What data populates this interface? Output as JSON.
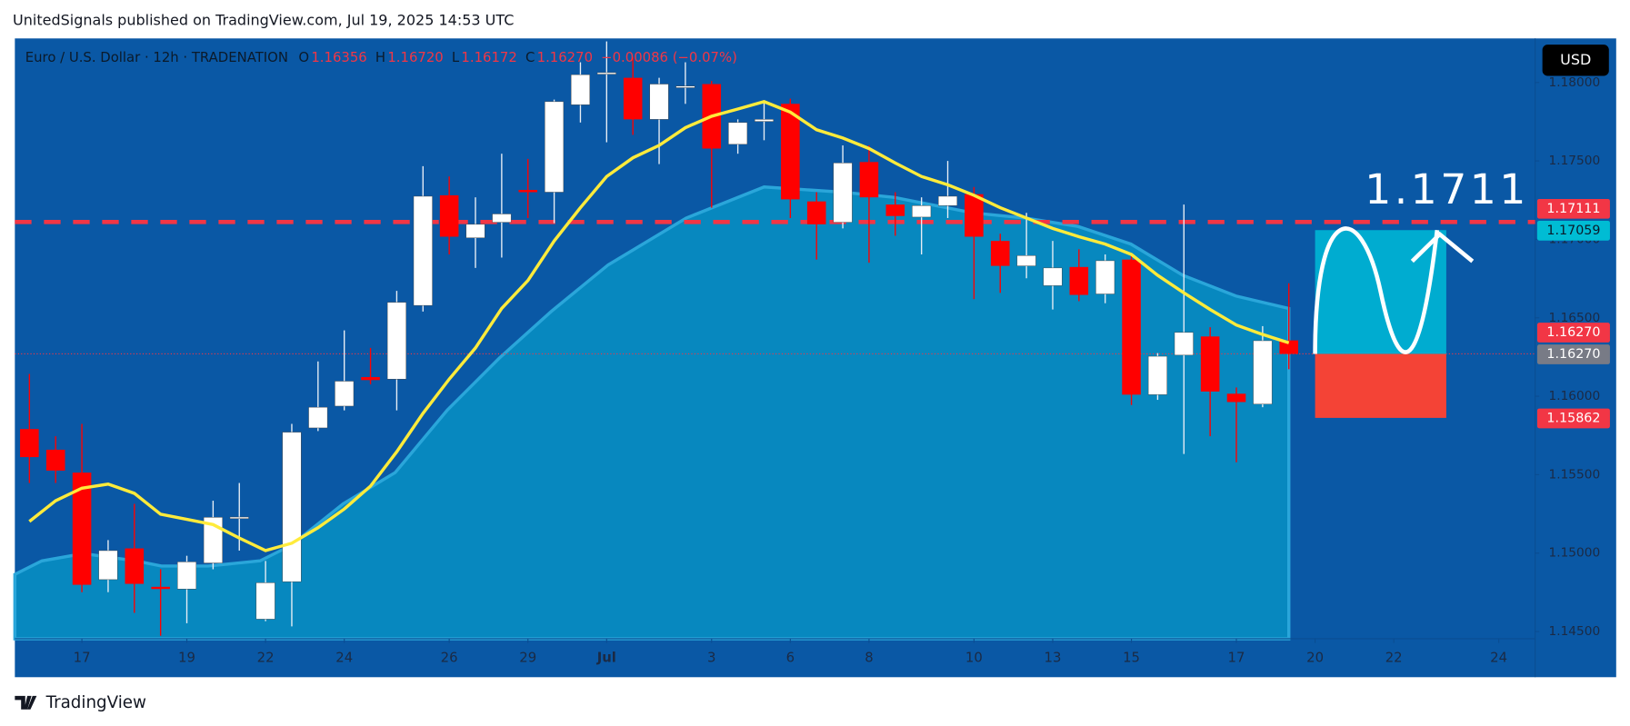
{
  "header": "UnitedSignals published on TradingView.com, Jul 19, 2025 14:53 UTC",
  "footer": "TradingView",
  "chart_data": {
    "type": "candlestick",
    "title": "Euro / U.S. Dollar · 12h · TRADENATION",
    "ohlc_legend": [
      {
        "label": "O",
        "value": "1.16356"
      },
      {
        "label": "H",
        "value": "1.16720"
      },
      {
        "label": "L",
        "value": "1.16172"
      },
      {
        "label": "C",
        "value": "1.16270"
      }
    ],
    "change": "−0.00086 (−0.07%)",
    "currency": "USD",
    "annotation": "1.1711",
    "categories": [
      null,
      null,
      "17",
      null,
      null,
      null,
      "19",
      null,
      null,
      "22",
      null,
      null,
      "24",
      null,
      null,
      null,
      "26",
      null,
      null,
      "29",
      null,
      null,
      "Jul",
      null,
      null,
      null,
      "3",
      null,
      null,
      "6",
      null,
      null,
      "8",
      null,
      null,
      null,
      "10",
      null,
      null,
      "13",
      null,
      null,
      "15",
      null,
      null,
      null,
      "17",
      null,
      null,
      "20",
      null,
      null,
      "22",
      null,
      null,
      null,
      "24",
      null
    ],
    "open": [
      1.15791,
      1.15659,
      1.15513,
      1.14831,
      1.1503,
      1.14785,
      1.14771,
      1.14937,
      1.15228,
      1.14579,
      1.14818,
      1.15798,
      1.15937,
      1.16122,
      1.16109,
      1.16579,
      1.17281,
      1.1701,
      1.17109,
      1.17315,
      1.17301,
      1.17858,
      1.18063,
      1.1803,
      1.17765,
      1.17977,
      1.1799,
      1.17606,
      1.17752,
      1.17864,
      1.17242,
      1.17109,
      1.17493,
      1.17222,
      1.17142,
      1.17215,
      1.17288,
      1.1699,
      1.16831,
      1.16705,
      1.16824,
      1.16652,
      1.16871,
      1.1601,
      1.16262,
      1.16381,
      1.16016,
      1.1595,
      1.16356,
      null,
      null,
      null,
      null,
      null,
      null,
      null,
      null,
      null
    ],
    "high": [
      1.16142,
      1.15745,
      1.15824,
      1.15083,
      1.15314,
      1.14897,
      1.14983,
      1.15334,
      1.15447,
      1.1495,
      1.15824,
      1.16222,
      1.1642,
      1.16308,
      1.16672,
      1.17467,
      1.17401,
      1.17268,
      1.17546,
      1.17513,
      1.17891,
      1.18129,
      1.18262,
      1.18162,
      1.1803,
      1.18129,
      1.1801,
      1.17765,
      1.17878,
      1.17897,
      1.17301,
      1.17599,
      1.17599,
      1.17301,
      1.17268,
      1.175,
      1.17334,
      1.17036,
      1.17169,
      1.1699,
      1.16937,
      1.16904,
      1.16904,
      1.16275,
      1.17222,
      1.1644,
      1.16056,
      1.16447,
      1.1672,
      null,
      null,
      null,
      null,
      null,
      null,
      null,
      null,
      null
    ],
    "low": [
      1.15447,
      1.15447,
      1.14751,
      1.14751,
      1.14619,
      1.14473,
      1.14553,
      1.14897,
      1.15016,
      1.14566,
      1.14533,
      1.15778,
      1.1591,
      1.16076,
      1.1591,
      1.1654,
      1.16904,
      1.16818,
      1.16884,
      1.17136,
      1.17103,
      1.17745,
      1.17619,
      1.17666,
      1.1748,
      1.17864,
      1.17202,
      1.17546,
      1.17632,
      1.17136,
      1.16871,
      1.1707,
      1.16851,
      1.17023,
      1.16904,
      1.17136,
      1.16619,
      1.16659,
      1.16752,
      1.16553,
      1.16606,
      1.16593,
      1.15944,
      1.15977,
      1.15632,
      1.15745,
      1.15579,
      1.1593,
      1.16172,
      null,
      null,
      null,
      null,
      null,
      null,
      null,
      null,
      null
    ],
    "close": [
      1.15612,
      1.15526,
      1.14798,
      1.15016,
      1.14804,
      1.14771,
      1.14944,
      1.15228,
      1.1523,
      1.14811,
      1.15771,
      1.1593,
      1.16096,
      1.16103,
      1.16599,
      1.17275,
      1.17017,
      1.17096,
      1.17162,
      1.17301,
      1.17878,
      1.1805,
      1.18063,
      1.17765,
      1.1799,
      1.17977,
      1.17579,
      1.17745,
      1.17765,
      1.17255,
      1.17096,
      1.17487,
      1.17268,
      1.17149,
      1.17215,
      1.17275,
      1.17017,
      1.16831,
      1.16897,
      1.16818,
      1.16646,
      1.16864,
      1.1601,
      1.16255,
      1.16407,
      1.1603,
      1.15963,
      1.16354,
      1.1627,
      null,
      null,
      null,
      null,
      null,
      null,
      null,
      null,
      null
    ],
    "up_color": "#ffffff",
    "down_color": "#ff0000",
    "ma": {
      "color": "#ffeb3b",
      "values": [
        1.15202,
        1.15334,
        1.15414,
        1.1544,
        1.15381,
        1.15248,
        1.15215,
        1.15182,
        1.15096,
        1.15016,
        1.15063,
        1.15162,
        1.15281,
        1.15427,
        1.15646,
        1.15891,
        1.16109,
        1.16308,
        1.1656,
        1.16738,
        1.1699,
        1.17202,
        1.17401,
        1.1752,
        1.17599,
        1.17712,
        1.17785,
        1.17831,
        1.17878,
        1.17811,
        1.17699,
        1.17646,
        1.17579,
        1.17487,
        1.17401,
        1.17348,
        1.17281,
        1.17202,
        1.17136,
        1.1707,
        1.17017,
        1.1697,
        1.16904,
        1.16771,
        1.16659,
        1.16553,
        1.16454,
        1.16394,
        1.16341,
        null,
        null,
        null,
        null,
        null,
        null,
        null,
        null,
        null
      ]
    },
    "ylim": [
      1.14454,
      1.18281
    ],
    "yticks": [
      {
        "value": 1.145,
        "label": "1.14500"
      },
      {
        "value": 1.15,
        "label": "1.15000"
      },
      {
        "value": 1.155,
        "label": "1.15500"
      },
      {
        "value": 1.16,
        "label": "1.16000"
      },
      {
        "value": 1.165,
        "label": "1.16500"
      },
      {
        "value": 1.17,
        "label": "1.17000"
      },
      {
        "value": 1.175,
        "label": "1.17500"
      },
      {
        "value": 1.18,
        "label": "1.18000"
      }
    ],
    "price_labels": [
      {
        "value": 1.17111,
        "label": "1.17111",
        "color": "#f23645"
      },
      {
        "value": 1.17059,
        "label": "1.17059",
        "color": "#00bcd4"
      },
      {
        "value": 1.1627,
        "label": "1.16270",
        "color": "#f23645"
      },
      {
        "value": 1.1627,
        "label": "1.16270",
        "color": "#787b86"
      },
      {
        "value": 1.15862,
        "label": "1.15862",
        "color": "#f23645"
      }
    ],
    "grid": false
  }
}
